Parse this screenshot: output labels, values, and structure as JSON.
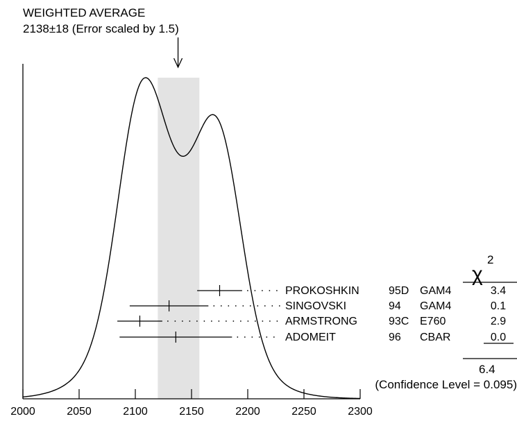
{
  "chart_data": {
    "type": "ideogram",
    "title_line1": "WEIGHTED AVERAGE",
    "title_line2": "2138±18 (Error scaled by 1.5)",
    "weighted_average": 2138,
    "error": 18,
    "error_scale_factor": 1.5,
    "band": [
      2120,
      2157
    ],
    "x_ticks": [
      2000,
      2050,
      2100,
      2150,
      2200,
      2250,
      2300
    ],
    "x_range": [
      2000,
      2300
    ],
    "chi2_header": "χ",
    "chi2_power": "2",
    "measurements": [
      {
        "author": "PROKOSHKIN",
        "year": "95D",
        "experiment": "GAM4",
        "value": 2175,
        "err_low": 20,
        "err_high": 20,
        "chi2": "3.4"
      },
      {
        "author": "SINGOVSKI",
        "year": "94",
        "experiment": "GAM4",
        "value": 2130,
        "err_low": 35,
        "err_high": 35,
        "chi2": "0.1"
      },
      {
        "author": "ARMSTRONG",
        "year": "93C",
        "experiment": "E760",
        "value": 2104,
        "err_low": 20,
        "err_high": 20,
        "chi2": "2.9"
      },
      {
        "author": "ADOMEIT",
        "year": "96",
        "experiment": "CBAR",
        "value": 2136,
        "err_low": 50,
        "err_high": 50,
        "chi2": "0.0"
      }
    ],
    "chi2_total": "6.4",
    "confidence_level": "(Confidence Level = 0.095)",
    "colors": {
      "band": "#e3e3e3",
      "line": "#000000"
    }
  }
}
